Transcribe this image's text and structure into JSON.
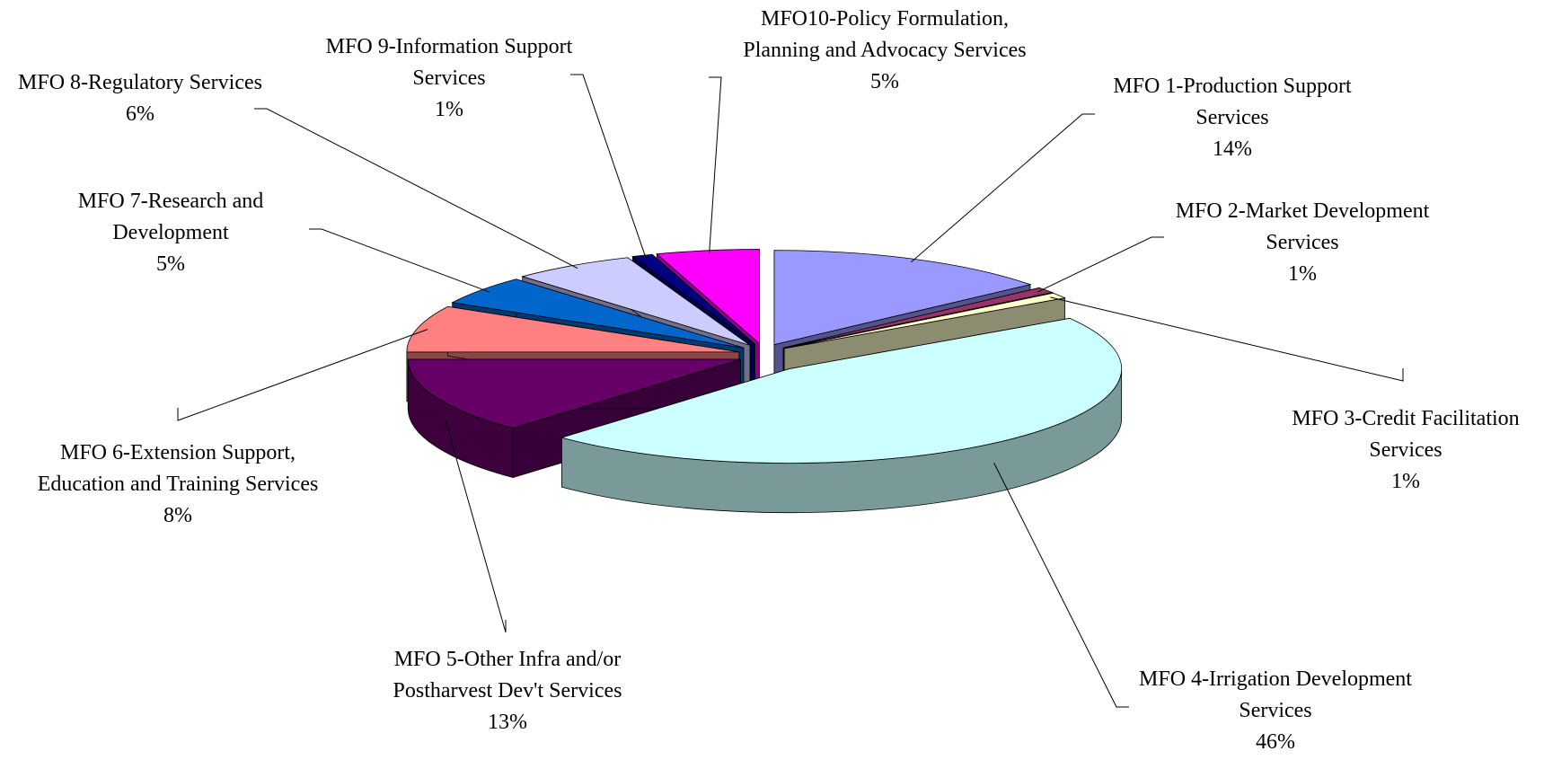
{
  "chart_data": {
    "type": "pie",
    "categories": [
      "MFO 1-Production Support Services",
      "MFO 2-Market Development Services",
      "MFO 3-Credit Facilitation Services",
      "MFO 4-Irrigation Development Services",
      "MFO 5-Other Infra and/or Postharvest Dev't Services",
      "MFO 6-Extension Support, Education and Training Services",
      "MFO 7-Research and Development",
      "MFO 8-Regulatory Services",
      "MFO 9-Information Support Services",
      "MFO10-Policy Formulation, Planning and Advocacy Services"
    ],
    "values": [
      14,
      1,
      1,
      46,
      13,
      8,
      5,
      6,
      1,
      5
    ],
    "value_labels": [
      "14%",
      "1%",
      "1%",
      "46%",
      "13%",
      "8%",
      "5%",
      "6%",
      "1%",
      "5%"
    ],
    "colors": [
      "#9999ff",
      "#993366",
      "#ffffcc",
      "#ccffff",
      "#660066",
      "#ff8080",
      "#0066cc",
      "#ccccff",
      "#000080",
      "#ff00ff"
    ]
  }
}
